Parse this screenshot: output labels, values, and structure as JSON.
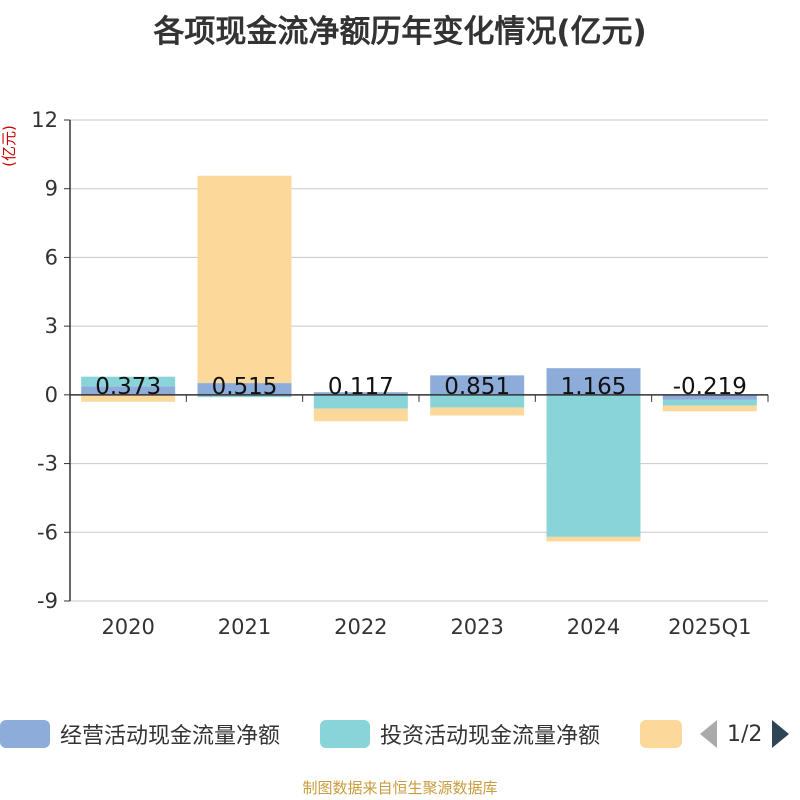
{
  "title": "各项现金流净额历年变化情况(亿元)",
  "footer": "制图数据来自恒生聚源数据库",
  "legend": {
    "items": [
      {
        "label": "经营活动现金流量净额",
        "color": "#8eacda"
      },
      {
        "label": "投资活动现金流量净额",
        "color": "#88d4d8"
      },
      {
        "label": "",
        "color": "#fdd89b"
      }
    ],
    "page_text": "1/2"
  },
  "chart_data": {
    "type": "bar",
    "stacked": true,
    "ylabel": "(亿元)",
    "ylim": [
      -9,
      12
    ],
    "yticks": [
      12,
      9,
      6,
      3,
      0,
      -3,
      -6,
      -9
    ],
    "grid": true,
    "categories": [
      "2020",
      "2021",
      "2022",
      "2023",
      "2024",
      "2025Q1"
    ],
    "series": [
      {
        "name": "经营活动现金流量净额",
        "color": "#8eacda",
        "values": [
          0.373,
          0.515,
          0.117,
          0.851,
          1.165,
          -0.219
        ],
        "labels": [
          "0.373",
          "0.515",
          "0.117",
          "0.851",
          "1.165",
          "-0.219"
        ]
      },
      {
        "name": "投资活动现金流量净额",
        "color": "#88d4d8",
        "values": [
          0.42,
          -0.1,
          -0.6,
          -0.55,
          -6.2,
          -0.25
        ]
      },
      {
        "color": "#fdd89b",
        "values": [
          -0.3,
          9.05,
          -0.55,
          -0.35,
          -0.2,
          -0.25
        ]
      }
    ]
  }
}
